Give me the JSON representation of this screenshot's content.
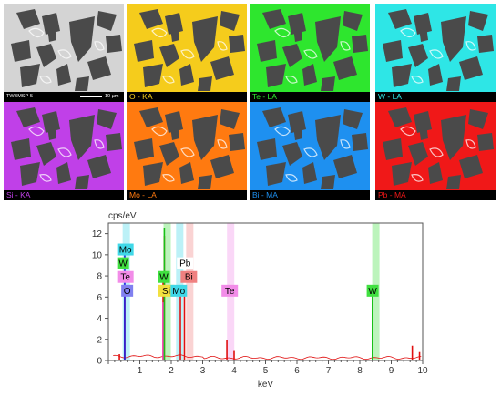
{
  "maps": [
    {
      "id": "se",
      "caption": "",
      "sample_id": "TWBMSP-5",
      "scale_label": "10 µm",
      "bg": "#d4d4d4",
      "caption_color": "#ffffff"
    },
    {
      "id": "o",
      "caption": "O - KA",
      "bg": "#f5cc1c",
      "caption_color": "#f5cc1c"
    },
    {
      "id": "te",
      "caption": "Te - LA",
      "bg": "#2ee62e",
      "caption_color": "#2ee62e"
    },
    {
      "id": "w",
      "caption": "W - LA",
      "bg": "#2ee6e6",
      "caption_color": "#2ee6e6"
    },
    {
      "id": "si",
      "caption": "Si - KA",
      "bg": "#c040e8",
      "caption_color": "#c040e8"
    },
    {
      "id": "mo",
      "caption": "Mo - LA",
      "bg": "#ff7a10",
      "caption_color": "#ff7a10"
    },
    {
      "id": "bi",
      "caption": "Bi - MA",
      "bg": "#1e90f0",
      "caption_color": "#1e90f0"
    },
    {
      "id": "pb",
      "caption": "Pb - MA",
      "bg": "#f01818",
      "caption_color": "#f01818"
    }
  ],
  "chart_data": {
    "type": "line",
    "ylabel": "cps/eV",
    "xlabel": "keV",
    "xlim": [
      0,
      10
    ],
    "ylim": [
      0,
      13
    ],
    "x_ticks": [
      "1",
      "2",
      "3",
      "4",
      "5",
      "6",
      "7",
      "8",
      "9",
      "10"
    ],
    "y_ticks": [
      "0",
      "2",
      "4",
      "6",
      "8",
      "10",
      "12"
    ],
    "series": [
      {
        "color": "#e01010",
        "x": [
          0.35,
          0.52,
          1.74,
          1.78,
          2.29,
          2.42,
          3.77,
          4.0,
          8.4,
          9.67,
          9.9
        ],
        "y": [
          0.6,
          6.5,
          7.8,
          11.8,
          6.5,
          6.2,
          1.9,
          0.9,
          6.5,
          1.4,
          0.8
        ]
      },
      {
        "color": "#1a1ae0",
        "x": [
          0.52
        ],
        "y": [
          10.2
        ]
      },
      {
        "color": "#ff3cc8",
        "x": [
          1.74
        ],
        "y": [
          5.5
        ]
      },
      {
        "color": "#18c018",
        "x": [
          1.78,
          8.4
        ],
        "y": [
          12.5,
          7.0
        ]
      }
    ],
    "element_labels": [
      {
        "text": "Mo",
        "x": 0.28,
        "y": 10.5,
        "bg": "#40d8e8",
        "fg": "#000000",
        "band": true
      },
      {
        "text": "W",
        "x": 0.28,
        "y": 9.2,
        "bg": "#40e040",
        "fg": "#000000",
        "band": false
      },
      {
        "text": "Te",
        "x": 0.28,
        "y": 7.9,
        "bg": "#f28ce8",
        "fg": "#000000",
        "band": false
      },
      {
        "text": "O",
        "x": 0.41,
        "y": 6.6,
        "bg": "#8080f0",
        "fg": "#000000",
        "band": false
      },
      {
        "text": "W",
        "x": 1.58,
        "y": 7.9,
        "bg": "#40e040",
        "fg": "#000000",
        "band": true
      },
      {
        "text": "Si",
        "x": 1.58,
        "y": 6.6,
        "bg": "#f2e040",
        "fg": "#000000",
        "band": false
      },
      {
        "text": "Pb",
        "x": 2.18,
        "y": 9.2,
        "bg": "#ffffff",
        "fg": "#000000",
        "band": true
      },
      {
        "text": "Bi",
        "x": 2.3,
        "y": 7.9,
        "bg": "#f08080",
        "fg": "#000000",
        "band": true
      },
      {
        "text": "Mo",
        "x": 1.98,
        "y": 6.6,
        "bg": "#40d8e8",
        "fg": "#000000",
        "band": true
      },
      {
        "text": "Te",
        "x": 3.6,
        "y": 6.6,
        "bg": "#f28ce8",
        "fg": "#000000",
        "band": true
      },
      {
        "text": "W",
        "x": 8.22,
        "y": 6.6,
        "bg": "#40e040",
        "fg": "#000000",
        "band": true
      }
    ]
  }
}
